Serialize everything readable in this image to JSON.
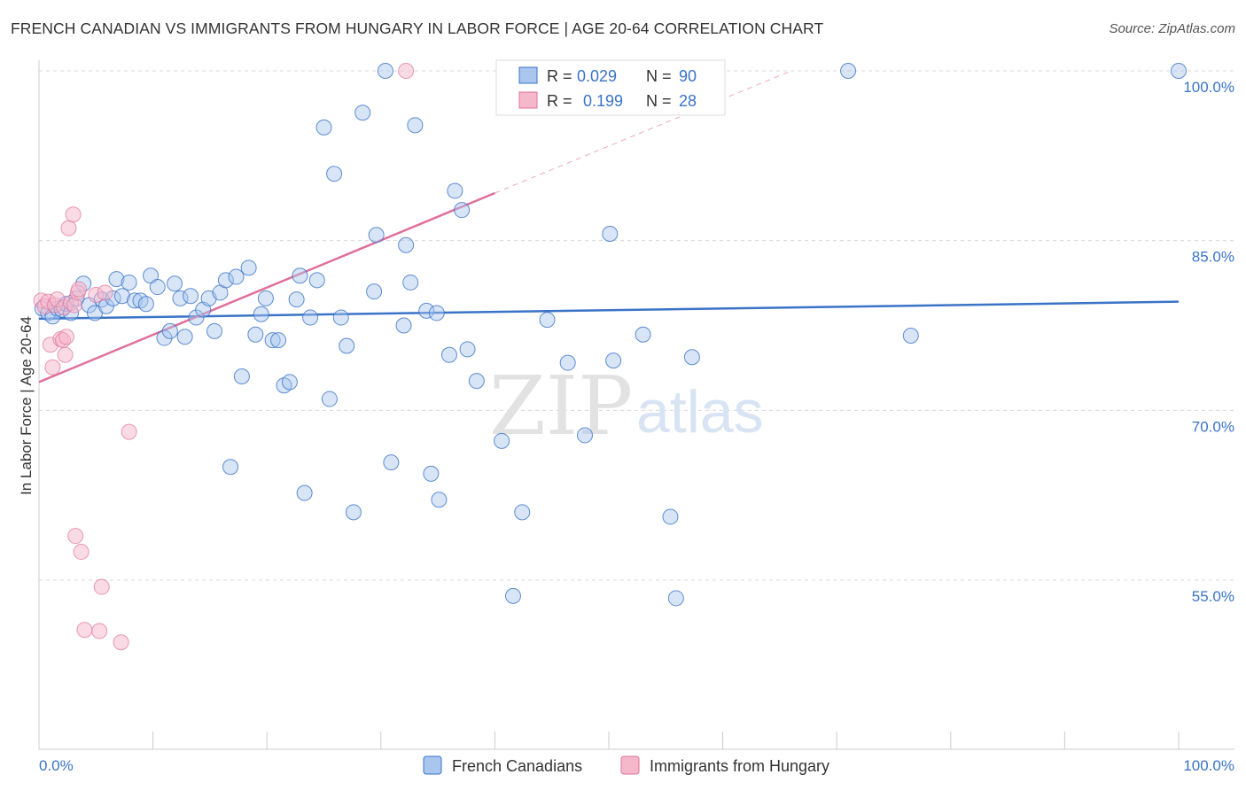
{
  "title": "FRENCH CANADIAN VS IMMIGRANTS FROM HUNGARY IN LABOR FORCE | AGE 20-64 CORRELATION CHART",
  "source": "Source: ZipAtlas.com",
  "watermark": {
    "zip": "ZIP",
    "atlas": "atlas"
  },
  "colors": {
    "blue": "#3a73c7",
    "blue_fill": "#a9c6ee",
    "pink": "#e0709a",
    "pink_fill": "#f5b8cb",
    "grid": "#d8d8d8"
  },
  "legend": {
    "rows": [
      {
        "r_label": "R =",
        "r_value": "0.029",
        "n_label": "N =",
        "n_value": "90"
      },
      {
        "r_label": "R =",
        "r_value": "0.199",
        "n_label": "N =",
        "n_value": "28"
      }
    ]
  },
  "bottom_legend": {
    "series1": "French Canadians",
    "series2": "Immigrants from Hungary"
  },
  "chart_data": {
    "type": "scatter",
    "title": "FRENCH CANADIAN VS IMMIGRANTS FROM HUNGARY IN LABOR FORCE | AGE 20-64 CORRELATION CHART",
    "xlabel": "",
    "ylabel": "In Labor Force | Age 20-64",
    "xlim": [
      0,
      100
    ],
    "ylim": [
      40,
      102
    ],
    "x_tick_labels": [
      "0.0%",
      "100.0%"
    ],
    "y_ticks": [
      55,
      70,
      85,
      100
    ],
    "y_tick_labels": [
      "55.0%",
      "70.0%",
      "85.0%",
      "100.0%"
    ],
    "grid": true,
    "series": [
      {
        "name": "French Canadians",
        "R": 0.029,
        "N": 90,
        "trend": {
          "x": [
            0,
            100
          ],
          "y": [
            78.1,
            79.6
          ]
        },
        "points": [
          [
            0.3,
            79.0
          ],
          [
            0.8,
            78.6
          ],
          [
            1.2,
            78.3
          ],
          [
            1.6,
            79.0
          ],
          [
            2.0,
            78.9
          ],
          [
            2.4,
            79.4
          ],
          [
            2.8,
            78.6
          ],
          [
            3.3,
            79.9
          ],
          [
            3.9,
            81.2
          ],
          [
            4.4,
            79.3
          ],
          [
            4.9,
            78.6
          ],
          [
            5.5,
            79.8
          ],
          [
            5.9,
            79.2
          ],
          [
            6.5,
            79.9
          ],
          [
            6.8,
            81.6
          ],
          [
            7.3,
            80.1
          ],
          [
            7.9,
            81.3
          ],
          [
            8.4,
            79.7
          ],
          [
            8.9,
            79.7
          ],
          [
            9.4,
            79.4
          ],
          [
            9.8,
            81.9
          ],
          [
            10.4,
            80.9
          ],
          [
            11.0,
            76.4
          ],
          [
            11.5,
            77.0
          ],
          [
            11.9,
            81.2
          ],
          [
            12.4,
            79.9
          ],
          [
            12.8,
            76.5
          ],
          [
            13.3,
            80.1
          ],
          [
            13.8,
            78.2
          ],
          [
            14.4,
            78.9
          ],
          [
            14.9,
            79.9
          ],
          [
            15.4,
            77.0
          ],
          [
            15.9,
            80.4
          ],
          [
            16.4,
            81.5
          ],
          [
            16.8,
            65.0
          ],
          [
            17.3,
            81.8
          ],
          [
            17.8,
            73.0
          ],
          [
            18.4,
            82.6
          ],
          [
            19.0,
            76.7
          ],
          [
            19.5,
            78.5
          ],
          [
            19.9,
            79.9
          ],
          [
            20.5,
            76.2
          ],
          [
            21.0,
            76.2
          ],
          [
            21.5,
            72.2
          ],
          [
            22.0,
            72.5
          ],
          [
            22.6,
            79.8
          ],
          [
            22.9,
            81.9
          ],
          [
            23.3,
            62.7
          ],
          [
            23.8,
            78.2
          ],
          [
            24.4,
            81.5
          ],
          [
            25.0,
            95.0
          ],
          [
            25.5,
            71.0
          ],
          [
            25.9,
            90.9
          ],
          [
            26.5,
            78.2
          ],
          [
            27.0,
            75.7
          ],
          [
            27.6,
            61.0
          ],
          [
            28.4,
            96.3
          ],
          [
            29.4,
            80.5
          ],
          [
            29.6,
            85.5
          ],
          [
            30.4,
            100.0
          ],
          [
            30.9,
            65.4
          ],
          [
            32.0,
            77.5
          ],
          [
            32.2,
            84.6
          ],
          [
            32.6,
            81.3
          ],
          [
            33.0,
            95.2
          ],
          [
            34.0,
            78.8
          ],
          [
            34.4,
            64.4
          ],
          [
            34.9,
            78.6
          ],
          [
            35.1,
            62.1
          ],
          [
            36.0,
            74.9
          ],
          [
            36.5,
            89.4
          ],
          [
            37.1,
            87.7
          ],
          [
            37.6,
            75.4
          ],
          [
            38.4,
            72.6
          ],
          [
            40.6,
            67.3
          ],
          [
            41.6,
            53.6
          ],
          [
            42.4,
            61.0
          ],
          [
            44.6,
            78.0
          ],
          [
            46.4,
            74.2
          ],
          [
            47.9,
            67.8
          ],
          [
            48.9,
            100.0
          ],
          [
            50.1,
            85.6
          ],
          [
            50.4,
            74.4
          ],
          [
            53.0,
            76.7
          ],
          [
            55.4,
            60.6
          ],
          [
            55.9,
            53.4
          ],
          [
            57.3,
            74.7
          ],
          [
            71.0,
            100.0
          ],
          [
            76.5,
            76.6
          ],
          [
            100.0,
            100.0
          ]
        ]
      },
      {
        "name": "Immigrants from Hungary",
        "R": 0.199,
        "N": 28,
        "trend": {
          "x": [
            0,
            40
          ],
          "y": [
            72.5,
            89.2
          ]
        },
        "trend_extension": {
          "x": [
            40,
            66
          ],
          "y": [
            89.2,
            100.0
          ]
        },
        "points": [
          [
            0.2,
            79.7
          ],
          [
            0.5,
            79.2
          ],
          [
            0.8,
            79.6
          ],
          [
            1.0,
            75.8
          ],
          [
            1.2,
            73.8
          ],
          [
            1.4,
            79.3
          ],
          [
            1.6,
            79.8
          ],
          [
            1.9,
            76.3
          ],
          [
            2.1,
            76.2
          ],
          [
            2.2,
            79.1
          ],
          [
            2.3,
            74.9
          ],
          [
            2.4,
            76.5
          ],
          [
            2.6,
            86.1
          ],
          [
            2.8,
            79.5
          ],
          [
            3.0,
            87.3
          ],
          [
            3.1,
            79.3
          ],
          [
            3.2,
            58.9
          ],
          [
            3.4,
            80.4
          ],
          [
            3.5,
            80.7
          ],
          [
            3.7,
            57.5
          ],
          [
            4.0,
            50.6
          ],
          [
            5.0,
            80.2
          ],
          [
            5.3,
            50.5
          ],
          [
            5.5,
            54.4
          ],
          [
            5.8,
            80.4
          ],
          [
            7.2,
            49.5
          ],
          [
            7.9,
            68.1
          ],
          [
            32.2,
            100.0
          ]
        ]
      }
    ]
  }
}
